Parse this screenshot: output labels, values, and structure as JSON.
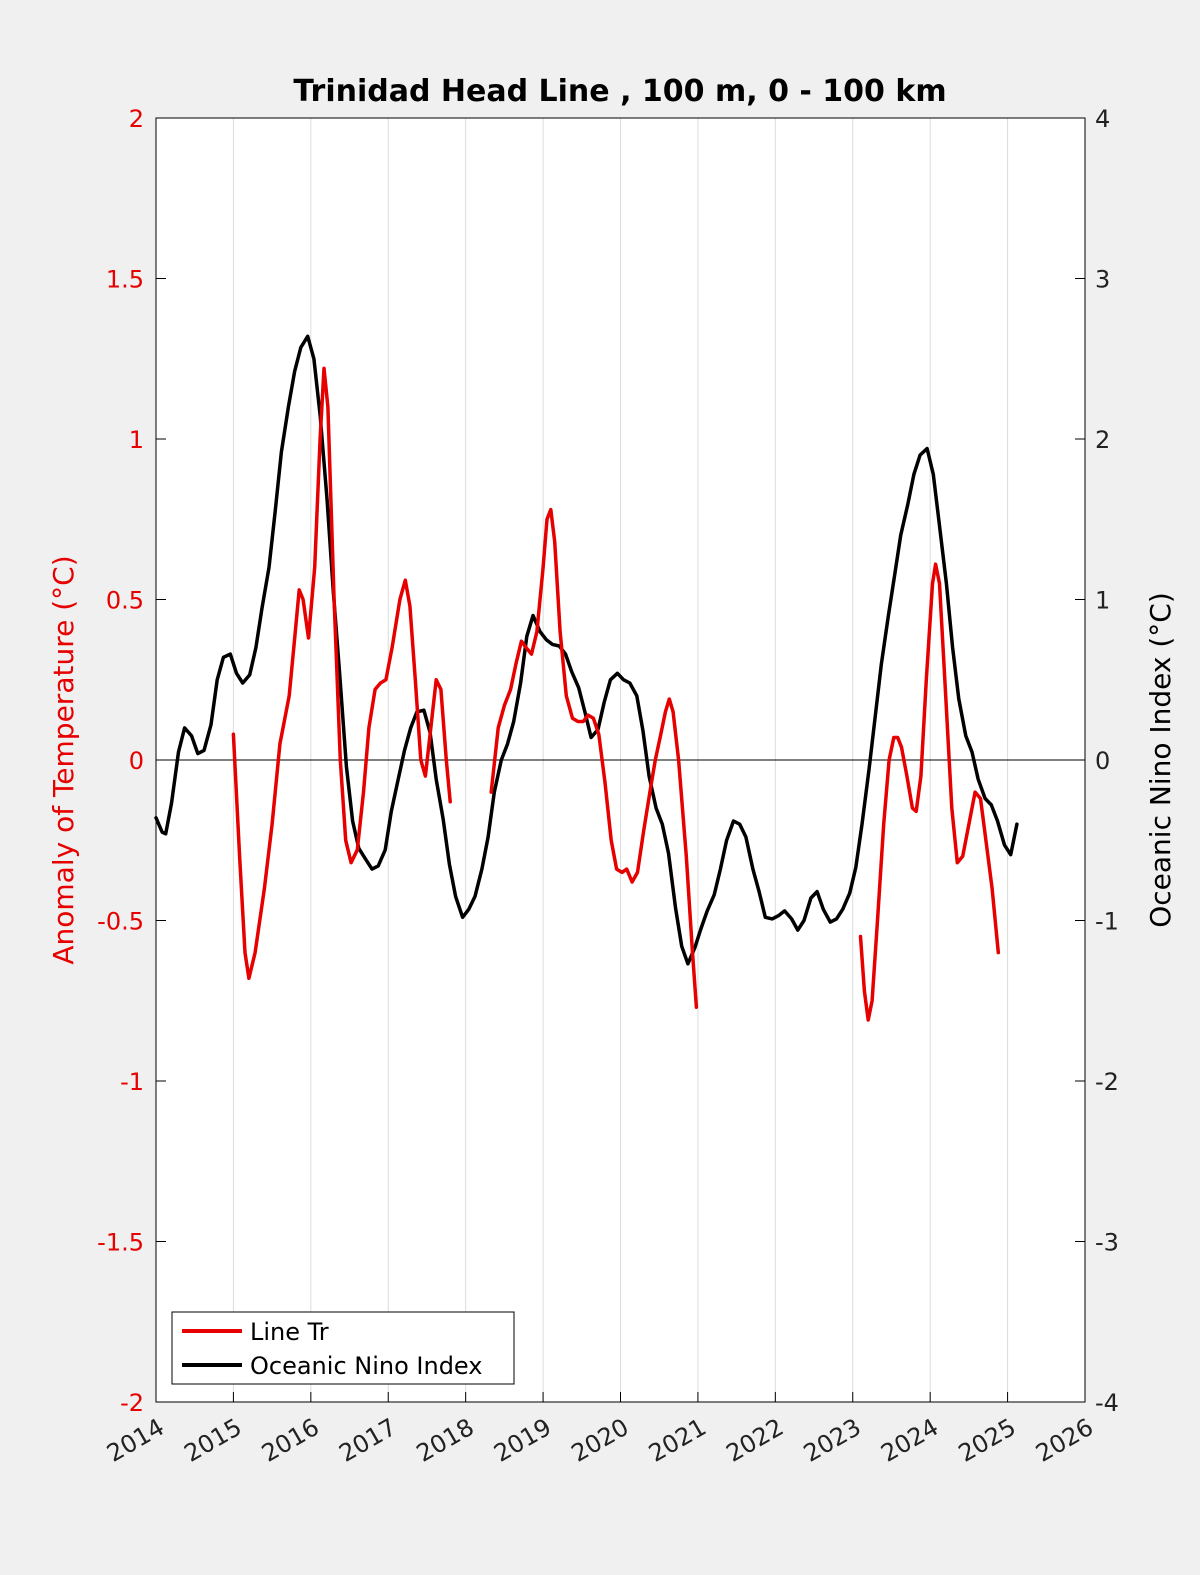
{
  "chart_data": {
    "type": "line",
    "title": "Trinidad Head Line , 100 m, 0 - 100 km",
    "ylabel_left": "Anomaly of Temperature (°C)",
    "ylabel_right": "Oceanic Nino Index (°C)",
    "xlim": [
      2014,
      2026
    ],
    "ylim_left": [
      -2,
      2
    ],
    "ylim_right": [
      -4,
      4
    ],
    "x_ticks": [
      "2014",
      "2015",
      "2016",
      "2017",
      "2018",
      "2019",
      "2020",
      "2021",
      "2022",
      "2023",
      "2024",
      "2025",
      "2026"
    ],
    "y_ticks_left": [
      "2",
      "1.5",
      "1",
      "0.5",
      "0",
      "-0.5",
      "-1",
      "-1.5",
      "-2"
    ],
    "y_ticks_right": [
      "4",
      "3",
      "2",
      "1",
      "0",
      "-1",
      "-2",
      "-3",
      "-4"
    ],
    "grid": "vertical",
    "legend_position": "bottom-left",
    "colors": {
      "line_tr": "#e60000",
      "oni": "#000000"
    },
    "series": [
      {
        "name": "Line Tr",
        "axis": "left",
        "color": "#e60000",
        "segments": [
          [
            [
              2015.0,
              0.08
            ],
            [
              2015.08,
              -0.3
            ],
            [
              2015.15,
              -0.6
            ],
            [
              2015.2,
              -0.68
            ],
            [
              2015.28,
              -0.6
            ],
            [
              2015.4,
              -0.4
            ],
            [
              2015.5,
              -0.2
            ],
            [
              2015.6,
              0.05
            ],
            [
              2015.72,
              0.2
            ],
            [
              2015.8,
              0.4
            ],
            [
              2015.85,
              0.53
            ],
            [
              2015.9,
              0.5
            ],
            [
              2015.97,
              0.38
            ],
            [
              2016.05,
              0.6
            ],
            [
              2016.12,
              1.0
            ],
            [
              2016.17,
              1.22
            ],
            [
              2016.22,
              1.1
            ],
            [
              2016.3,
              0.5
            ],
            [
              2016.38,
              0.0
            ],
            [
              2016.45,
              -0.25
            ],
            [
              2016.52,
              -0.32
            ],
            [
              2016.6,
              -0.28
            ],
            [
              2016.68,
              -0.1
            ],
            [
              2016.75,
              0.1
            ],
            [
              2016.83,
              0.22
            ],
            [
              2016.9,
              0.24
            ],
            [
              2016.97,
              0.25
            ],
            [
              2017.05,
              0.35
            ],
            [
              2017.15,
              0.5
            ],
            [
              2017.22,
              0.56
            ],
            [
              2017.28,
              0.48
            ],
            [
              2017.35,
              0.25
            ],
            [
              2017.42,
              0.0
            ],
            [
              2017.48,
              -0.05
            ],
            [
              2017.55,
              0.1
            ],
            [
              2017.62,
              0.25
            ],
            [
              2017.68,
              0.22
            ],
            [
              2017.75,
              0.0
            ],
            [
              2017.8,
              -0.13
            ]
          ],
          [
            [
              2018.33,
              -0.1
            ],
            [
              2018.42,
              0.1
            ],
            [
              2018.5,
              0.17
            ],
            [
              2018.58,
              0.22
            ],
            [
              2018.65,
              0.3
            ],
            [
              2018.72,
              0.37
            ],
            [
              2018.78,
              0.35
            ],
            [
              2018.85,
              0.33
            ],
            [
              2018.92,
              0.4
            ],
            [
              2019.0,
              0.6
            ],
            [
              2019.05,
              0.75
            ],
            [
              2019.1,
              0.78
            ],
            [
              2019.15,
              0.68
            ],
            [
              2019.22,
              0.4
            ],
            [
              2019.3,
              0.2
            ],
            [
              2019.38,
              0.13
            ],
            [
              2019.45,
              0.12
            ],
            [
              2019.52,
              0.12
            ],
            [
              2019.58,
              0.14
            ],
            [
              2019.65,
              0.13
            ],
            [
              2019.72,
              0.08
            ],
            [
              2019.8,
              -0.07
            ],
            [
              2019.88,
              -0.25
            ],
            [
              2019.95,
              -0.34
            ],
            [
              2020.02,
              -0.35
            ],
            [
              2020.08,
              -0.34
            ],
            [
              2020.15,
              -0.38
            ],
            [
              2020.22,
              -0.35
            ],
            [
              2020.3,
              -0.22
            ],
            [
              2020.38,
              -0.1
            ],
            [
              2020.45,
              0.0
            ],
            [
              2020.52,
              0.08
            ],
            [
              2020.58,
              0.15
            ],
            [
              2020.63,
              0.19
            ],
            [
              2020.68,
              0.15
            ],
            [
              2020.75,
              0.0
            ],
            [
              2020.85,
              -0.3
            ],
            [
              2020.93,
              -0.6
            ],
            [
              2020.98,
              -0.77
            ]
          ],
          [
            [
              2023.1,
              -0.55
            ],
            [
              2023.15,
              -0.72
            ],
            [
              2023.2,
              -0.81
            ],
            [
              2023.25,
              -0.75
            ],
            [
              2023.32,
              -0.5
            ],
            [
              2023.4,
              -0.2
            ],
            [
              2023.47,
              0.0
            ],
            [
              2023.53,
              0.07
            ],
            [
              2023.58,
              0.07
            ],
            [
              2023.63,
              0.04
            ],
            [
              2023.7,
              -0.05
            ],
            [
              2023.77,
              -0.15
            ],
            [
              2023.82,
              -0.16
            ],
            [
              2023.88,
              -0.05
            ],
            [
              2023.95,
              0.25
            ],
            [
              2024.03,
              0.55
            ],
            [
              2024.07,
              0.61
            ],
            [
              2024.12,
              0.55
            ],
            [
              2024.2,
              0.2
            ],
            [
              2024.28,
              -0.15
            ],
            [
              2024.35,
              -0.32
            ],
            [
              2024.42,
              -0.3
            ],
            [
              2024.5,
              -0.2
            ],
            [
              2024.58,
              -0.1
            ],
            [
              2024.65,
              -0.12
            ],
            [
              2024.72,
              -0.25
            ],
            [
              2024.8,
              -0.4
            ],
            [
              2024.88,
              -0.6
            ]
          ]
        ]
      },
      {
        "name": "Oceanic Nino Index",
        "axis": "right",
        "color": "#000000",
        "segments": [
          [
            [
              2014.0,
              -0.36
            ],
            [
              2014.08,
              -0.45
            ],
            [
              2014.125,
              -0.46
            ],
            [
              2014.2,
              -0.27
            ],
            [
              2014.29,
              0.05
            ],
            [
              2014.37,
              0.2
            ],
            [
              2014.46,
              0.15
            ],
            [
              2014.54,
              0.04
            ],
            [
              2014.62,
              0.06
            ],
            [
              2014.71,
              0.22
            ],
            [
              2014.79,
              0.5
            ],
            [
              2014.87,
              0.64
            ],
            [
              2014.96,
              0.66
            ],
            [
              2015.04,
              0.54
            ],
            [
              2015.12,
              0.48
            ],
            [
              2015.21,
              0.53
            ],
            [
              2015.29,
              0.7
            ],
            [
              2015.37,
              0.95
            ],
            [
              2015.46,
              1.2
            ],
            [
              2015.54,
              1.55
            ],
            [
              2015.62,
              1.92
            ],
            [
              2015.71,
              2.2
            ],
            [
              2015.79,
              2.42
            ],
            [
              2015.87,
              2.57
            ],
            [
              2015.96,
              2.64
            ],
            [
              2016.04,
              2.5
            ],
            [
              2016.12,
              2.15
            ],
            [
              2016.21,
              1.62
            ],
            [
              2016.29,
              1.05
            ],
            [
              2016.37,
              0.55
            ],
            [
              2016.46,
              -0.04
            ],
            [
              2016.54,
              -0.38
            ],
            [
              2016.62,
              -0.55
            ],
            [
              2016.71,
              -0.62
            ],
            [
              2016.79,
              -0.68
            ],
            [
              2016.87,
              -0.66
            ],
            [
              2016.96,
              -0.56
            ],
            [
              2017.04,
              -0.32
            ],
            [
              2017.12,
              -0.14
            ],
            [
              2017.21,
              0.06
            ],
            [
              2017.29,
              0.2
            ],
            [
              2017.37,
              0.3
            ],
            [
              2017.46,
              0.31
            ],
            [
              2017.54,
              0.17
            ],
            [
              2017.62,
              -0.12
            ],
            [
              2017.71,
              -0.37
            ],
            [
              2017.79,
              -0.65
            ],
            [
              2017.87,
              -0.85
            ],
            [
              2017.96,
              -0.98
            ],
            [
              2018.04,
              -0.93
            ],
            [
              2018.12,
              -0.85
            ],
            [
              2018.21,
              -0.68
            ],
            [
              2018.29,
              -0.48
            ],
            [
              2018.37,
              -0.2
            ],
            [
              2018.46,
              0.0
            ],
            [
              2018.54,
              0.1
            ],
            [
              2018.62,
              0.24
            ],
            [
              2018.71,
              0.48
            ],
            [
              2018.79,
              0.77
            ],
            [
              2018.87,
              0.9
            ],
            [
              2018.96,
              0.8
            ],
            [
              2019.04,
              0.75
            ],
            [
              2019.12,
              0.72
            ],
            [
              2019.21,
              0.71
            ],
            [
              2019.29,
              0.66
            ],
            [
              2019.37,
              0.55
            ],
            [
              2019.46,
              0.45
            ],
            [
              2019.54,
              0.3
            ],
            [
              2019.62,
              0.14
            ],
            [
              2019.71,
              0.19
            ],
            [
              2019.79,
              0.36
            ],
            [
              2019.87,
              0.5
            ],
            [
              2019.96,
              0.54
            ],
            [
              2020.04,
              0.5
            ],
            [
              2020.12,
              0.48
            ],
            [
              2020.21,
              0.4
            ],
            [
              2020.29,
              0.18
            ],
            [
              2020.37,
              -0.1
            ],
            [
              2020.46,
              -0.3
            ],
            [
              2020.54,
              -0.4
            ],
            [
              2020.62,
              -0.58
            ],
            [
              2020.71,
              -0.92
            ],
            [
              2020.79,
              -1.16
            ],
            [
              2020.87,
              -1.27
            ],
            [
              2020.96,
              -1.17
            ],
            [
              2021.04,
              -1.05
            ],
            [
              2021.12,
              -0.94
            ],
            [
              2021.21,
              -0.84
            ],
            [
              2021.29,
              -0.68
            ],
            [
              2021.37,
              -0.5
            ],
            [
              2021.46,
              -0.38
            ],
            [
              2021.54,
              -0.4
            ],
            [
              2021.62,
              -0.48
            ],
            [
              2021.71,
              -0.68
            ],
            [
              2021.79,
              -0.82
            ],
            [
              2021.87,
              -0.98
            ],
            [
              2021.96,
              -0.99
            ],
            [
              2022.04,
              -0.97
            ],
            [
              2022.12,
              -0.94
            ],
            [
              2022.21,
              -0.99
            ],
            [
              2022.29,
              -1.06
            ],
            [
              2022.37,
              -1.0
            ],
            [
              2022.46,
              -0.86
            ],
            [
              2022.54,
              -0.82
            ],
            [
              2022.62,
              -0.93
            ],
            [
              2022.71,
              -1.01
            ],
            [
              2022.79,
              -0.99
            ],
            [
              2022.87,
              -0.93
            ],
            [
              2022.96,
              -0.83
            ],
            [
              2023.04,
              -0.67
            ],
            [
              2023.12,
              -0.4
            ],
            [
              2023.21,
              -0.06
            ],
            [
              2023.29,
              0.27
            ],
            [
              2023.37,
              0.6
            ],
            [
              2023.46,
              0.9
            ],
            [
              2023.54,
              1.15
            ],
            [
              2023.62,
              1.4
            ],
            [
              2023.71,
              1.59
            ],
            [
              2023.79,
              1.78
            ],
            [
              2023.87,
              1.9
            ],
            [
              2023.96,
              1.94
            ],
            [
              2024.04,
              1.78
            ],
            [
              2024.12,
              1.46
            ],
            [
              2024.21,
              1.1
            ],
            [
              2024.29,
              0.7
            ],
            [
              2024.37,
              0.38
            ],
            [
              2024.46,
              0.15
            ],
            [
              2024.54,
              0.05
            ],
            [
              2024.62,
              -0.12
            ],
            [
              2024.71,
              -0.24
            ],
            [
              2024.79,
              -0.28
            ],
            [
              2024.87,
              -0.38
            ],
            [
              2024.96,
              -0.53
            ],
            [
              2025.04,
              -0.59
            ],
            [
              2025.12,
              -0.4
            ]
          ]
        ]
      }
    ]
  }
}
